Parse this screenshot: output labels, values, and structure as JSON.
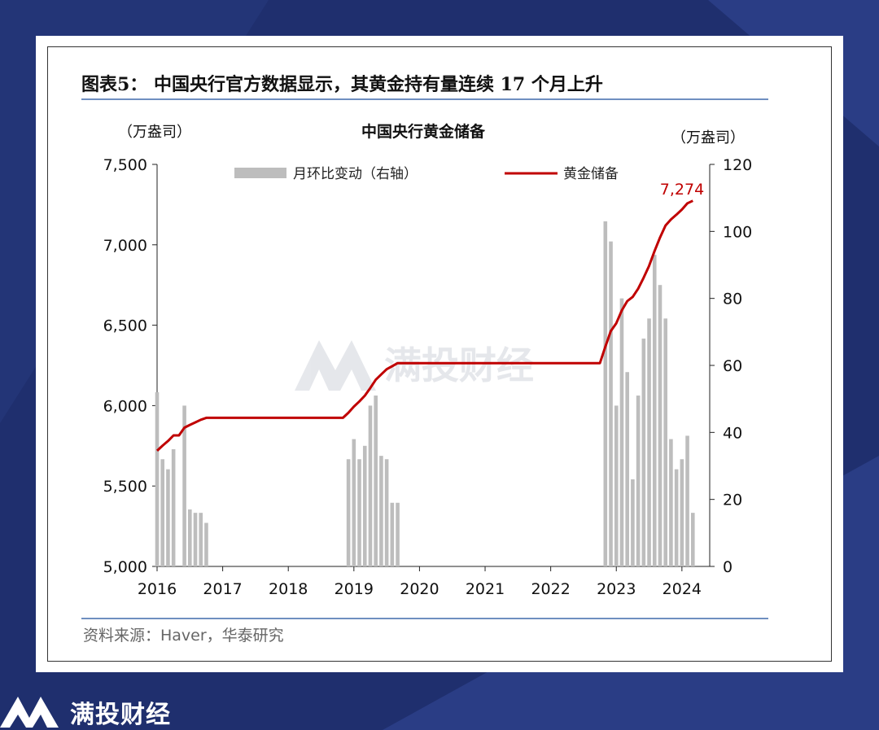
{
  "figure": {
    "title": "图表5： 中国央行官方数据显示，其黄金持有量连续 17 个月上升",
    "source": "资料来源：Haver，华泰研究"
  },
  "watermark": {
    "text": "满投财经"
  },
  "brand": {
    "text": "满投财经"
  },
  "colors": {
    "line": "#c00000",
    "bar": "#bdbdbd",
    "accent_rule": "#6f8fc0",
    "background": "#1f2f6e"
  },
  "chart_data": {
    "type": "bar+line",
    "title": "中国央行黄金储备",
    "left_unit": "（万盎司）",
    "right_unit": "（万盎司）",
    "x_ticks": [
      "2016",
      "2017",
      "2018",
      "2019",
      "2020",
      "2021",
      "2022",
      "2023",
      "2024"
    ],
    "left_axis": {
      "ticks": [
        "5,000",
        "5,500",
        "6,000",
        "6,500",
        "7,000",
        "7,500"
      ],
      "ylim": [
        5000,
        7500
      ]
    },
    "right_axis": {
      "ticks": [
        "0",
        "20",
        "40",
        "60",
        "80",
        "100",
        "120"
      ],
      "ylim": [
        0,
        120
      ]
    },
    "legend": [
      "月环比变动（右轴）",
      "黄金储备"
    ],
    "last_label": "7,274",
    "bars": {
      "name": "月环比变动（右轴）",
      "points": [
        {
          "month": "2016-01",
          "value": 52
        },
        {
          "month": "2016-02",
          "value": 32
        },
        {
          "month": "2016-03",
          "value": 29
        },
        {
          "month": "2016-04",
          "value": 35
        },
        {
          "month": "2016-06",
          "value": 48
        },
        {
          "month": "2016-07",
          "value": 17
        },
        {
          "month": "2016-08",
          "value": 16
        },
        {
          "month": "2016-09",
          "value": 16
        },
        {
          "month": "2016-10",
          "value": 13
        },
        {
          "month": "2018-12",
          "value": 32
        },
        {
          "month": "2019-01",
          "value": 38
        },
        {
          "month": "2019-02",
          "value": 32
        },
        {
          "month": "2019-03",
          "value": 36
        },
        {
          "month": "2019-04",
          "value": 48
        },
        {
          "month": "2019-05",
          "value": 51
        },
        {
          "month": "2019-06",
          "value": 33
        },
        {
          "month": "2019-07",
          "value": 32
        },
        {
          "month": "2019-08",
          "value": 19
        },
        {
          "month": "2019-09",
          "value": 19
        },
        {
          "month": "2022-11",
          "value": 103
        },
        {
          "month": "2022-12",
          "value": 97
        },
        {
          "month": "2023-01",
          "value": 48
        },
        {
          "month": "2023-02",
          "value": 80
        },
        {
          "month": "2023-03",
          "value": 58
        },
        {
          "month": "2023-04",
          "value": 26
        },
        {
          "month": "2023-05",
          "value": 51
        },
        {
          "month": "2023-06",
          "value": 68
        },
        {
          "month": "2023-07",
          "value": 74
        },
        {
          "month": "2023-08",
          "value": 93
        },
        {
          "month": "2023-09",
          "value": 84
        },
        {
          "month": "2023-10",
          "value": 74
        },
        {
          "month": "2023-11",
          "value": 38
        },
        {
          "month": "2023-12",
          "value": 29
        },
        {
          "month": "2024-01",
          "value": 32
        },
        {
          "month": "2024-02",
          "value": 39
        },
        {
          "month": "2024-03",
          "value": 16
        }
      ]
    },
    "line": {
      "name": "黄金储备",
      "points": [
        {
          "month": "2016-01",
          "value": 5719
        },
        {
          "month": "2016-02",
          "value": 5751
        },
        {
          "month": "2016-03",
          "value": 5780
        },
        {
          "month": "2016-04",
          "value": 5815
        },
        {
          "month": "2016-05",
          "value": 5815
        },
        {
          "month": "2016-06",
          "value": 5863
        },
        {
          "month": "2016-07",
          "value": 5880
        },
        {
          "month": "2016-08",
          "value": 5896
        },
        {
          "month": "2016-09",
          "value": 5912
        },
        {
          "month": "2016-10",
          "value": 5924
        },
        {
          "month": "2016-11",
          "value": 5924
        },
        {
          "month": "2017-06",
          "value": 5924
        },
        {
          "month": "2018-06",
          "value": 5924
        },
        {
          "month": "2018-11",
          "value": 5924
        },
        {
          "month": "2018-12",
          "value": 5956
        },
        {
          "month": "2019-01",
          "value": 5994
        },
        {
          "month": "2019-02",
          "value": 6026
        },
        {
          "month": "2019-03",
          "value": 6062
        },
        {
          "month": "2019-04",
          "value": 6110
        },
        {
          "month": "2019-05",
          "value": 6161
        },
        {
          "month": "2019-06",
          "value": 6194
        },
        {
          "month": "2019-07",
          "value": 6226
        },
        {
          "month": "2019-08",
          "value": 6245
        },
        {
          "month": "2019-09",
          "value": 6264
        },
        {
          "month": "2019-10",
          "value": 6264
        },
        {
          "month": "2021-01",
          "value": 6264
        },
        {
          "month": "2022-10",
          "value": 6264
        },
        {
          "month": "2022-11",
          "value": 6367
        },
        {
          "month": "2022-12",
          "value": 6464
        },
        {
          "month": "2023-01",
          "value": 6512
        },
        {
          "month": "2023-02",
          "value": 6592
        },
        {
          "month": "2023-03",
          "value": 6650
        },
        {
          "month": "2023-04",
          "value": 6676
        },
        {
          "month": "2023-05",
          "value": 6727
        },
        {
          "month": "2023-06",
          "value": 6795
        },
        {
          "month": "2023-07",
          "value": 6869
        },
        {
          "month": "2023-08",
          "value": 6962
        },
        {
          "month": "2023-09",
          "value": 7046
        },
        {
          "month": "2023-10",
          "value": 7120
        },
        {
          "month": "2023-11",
          "value": 7158
        },
        {
          "month": "2023-12",
          "value": 7187
        },
        {
          "month": "2024-01",
          "value": 7219
        },
        {
          "month": "2024-02",
          "value": 7258
        },
        {
          "month": "2024-03",
          "value": 7274
        }
      ]
    }
  }
}
